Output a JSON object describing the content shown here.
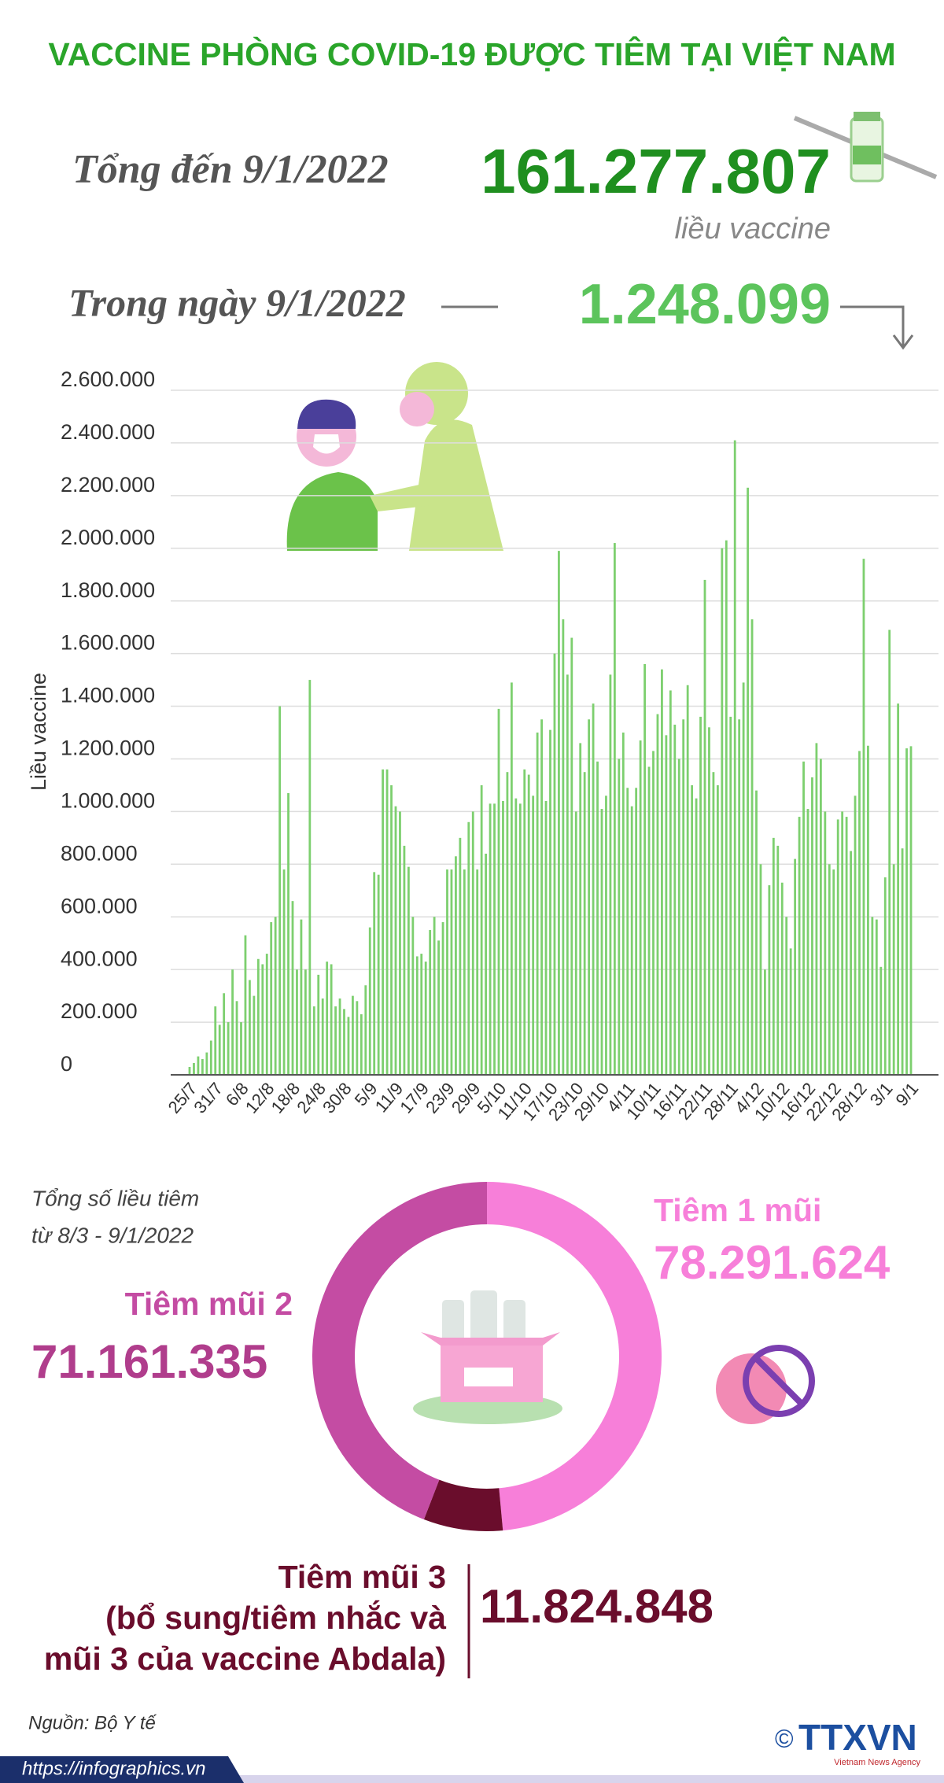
{
  "header": {
    "title": "VACCINE PHÒNG COVID-19 ĐƯỢC TIÊM TẠI VIỆT NAM",
    "total_label": "Tổng đến 9/1/2022",
    "total_value": "161.277.807",
    "total_unit": "liều vaccine",
    "day_label": "Trong ngày 9/1/2022",
    "day_value": "1.248.099"
  },
  "chart_data": [
    {
      "type": "bar",
      "y_label": "Liều vaccine",
      "color": "#7dcf6f",
      "grid": true,
      "ylim": [
        0,
        2600000
      ],
      "yticks": [
        0,
        {
          "value": 200000,
          "label": "200.000"
        },
        {
          "value": 400000,
          "label": "400.000"
        },
        {
          "value": 600000,
          "label": "600.000"
        },
        {
          "value": 800000,
          "label": "800.000"
        },
        {
          "value": 1000000,
          "label": "1.000.000"
        },
        {
          "value": 1200000,
          "label": "1.200.000"
        },
        {
          "value": 1400000,
          "label": "1.400.000"
        },
        {
          "value": 1600000,
          "label": "1.600.000"
        },
        {
          "value": 1800000,
          "label": "1.800.000"
        },
        {
          "value": 2000000,
          "label": "2.000.000"
        },
        {
          "value": 2200000,
          "label": "2.200.000"
        },
        {
          "value": 2400000,
          "label": "2.400.000"
        },
        {
          "value": 2600000,
          "label": "2.600.000"
        }
      ],
      "categories": [
        "25/7",
        null,
        null,
        null,
        null,
        null,
        "31/7",
        null,
        null,
        null,
        null,
        null,
        "6/8",
        null,
        null,
        null,
        null,
        null,
        "12/8",
        null,
        null,
        null,
        null,
        null,
        "18/8",
        null,
        null,
        null,
        null,
        null,
        "24/8",
        null,
        null,
        null,
        null,
        null,
        "30/8",
        null,
        null,
        null,
        null,
        null,
        "5/9",
        null,
        null,
        null,
        null,
        null,
        "11/9",
        null,
        null,
        null,
        null,
        null,
        "17/9",
        null,
        null,
        null,
        null,
        null,
        "23/9",
        null,
        null,
        null,
        null,
        null,
        "29/9",
        null,
        null,
        null,
        null,
        null,
        "5/10",
        null,
        null,
        null,
        null,
        null,
        "11/10",
        null,
        null,
        null,
        null,
        null,
        "17/10",
        null,
        null,
        null,
        null,
        null,
        "23/10",
        null,
        null,
        null,
        null,
        null,
        "29/10",
        null,
        null,
        null,
        null,
        null,
        "4/11",
        null,
        null,
        null,
        null,
        null,
        "10/11",
        null,
        null,
        null,
        null,
        null,
        "16/11",
        null,
        null,
        null,
        null,
        null,
        "22/11",
        null,
        null,
        null,
        null,
        null,
        "28/11",
        null,
        null,
        null,
        null,
        null,
        "4/12",
        null,
        null,
        null,
        null,
        null,
        "10/12",
        null,
        null,
        null,
        null,
        null,
        "16/12",
        null,
        null,
        null,
        null,
        null,
        "22/12",
        null,
        null,
        null,
        null,
        null,
        "28/12",
        null,
        null,
        null,
        null,
        null,
        "3/1",
        null,
        null,
        null,
        null,
        null,
        "9/1"
      ],
      "values": [
        30000,
        45000,
        70000,
        60000,
        85000,
        130000,
        260000,
        190000,
        310000,
        200000,
        400000,
        280000,
        200000,
        530000,
        360000,
        300000,
        440000,
        420000,
        460000,
        580000,
        600000,
        1400000,
        780000,
        1070000,
        660000,
        400000,
        590000,
        400000,
        1500000,
        260000,
        380000,
        290000,
        430000,
        420000,
        260000,
        290000,
        250000,
        220000,
        300000,
        280000,
        230000,
        340000,
        560000,
        770000,
        760000,
        1160000,
        1160000,
        1100000,
        1020000,
        1000000,
        870000,
        790000,
        600000,
        450000,
        460000,
        430000,
        550000,
        600000,
        510000,
        580000,
        780000,
        780000,
        830000,
        900000,
        780000,
        960000,
        1000000,
        780000,
        1100000,
        840000,
        1030000,
        1030000,
        1390000,
        1040000,
        1150000,
        1490000,
        1050000,
        1030000,
        1160000,
        1140000,
        1060000,
        1300000,
        1350000,
        1040000,
        1310000,
        1600000,
        1990000,
        1730000,
        1520000,
        1660000,
        1000000,
        1260000,
        1150000,
        1350000,
        1410000,
        1190000,
        1010000,
        1060000,
        1520000,
        2020000,
        1200000,
        1300000,
        1090000,
        1020000,
        1090000,
        1270000,
        1560000,
        1170000,
        1230000,
        1370000,
        1540000,
        1290000,
        1460000,
        1330000,
        1200000,
        1350000,
        1480000,
        1100000,
        1050000,
        1360000,
        1880000,
        1320000,
        1150000,
        1100000,
        2000000,
        2030000,
        1360000,
        2410000,
        1350000,
        1490000,
        2230000,
        1730000,
        1080000,
        800000,
        400000,
        720000,
        900000,
        870000,
        730000,
        600000,
        480000,
        820000,
        980000,
        1190000,
        1010000,
        1130000,
        1260000,
        1200000,
        1000000,
        800000,
        780000,
        970000,
        1000000,
        980000,
        850000,
        1060000,
        1230000,
        1960000,
        1250000,
        600000,
        590000,
        410000,
        750000,
        1690000,
        800000,
        1410000,
        860000,
        1240000,
        1248099
      ]
    },
    {
      "type": "pie",
      "note": [
        "Tổng số liều tiêm",
        "từ 8/3 - 9/1/2022"
      ],
      "categories": [
        "Tiêm 1 mũi",
        "Tiêm mũi 3",
        "Tiêm mũi 2"
      ],
      "category_notes": [
        [],
        [
          "(bổ sung/tiêm nhắc và",
          "mũi 3 của vaccine Abdala)"
        ],
        []
      ],
      "values": [
        78291624,
        11824848,
        71161335
      ],
      "value_labels": [
        "78.291.624",
        "11.824.848",
        "71.161.335"
      ],
      "colors": [
        "#f77fd9",
        "#6a0d2c",
        "#c44ca3"
      ]
    }
  ],
  "footer": {
    "source": "Nguồn: Bộ Y tế",
    "url": "https://infographics.vn",
    "copyright": "©",
    "logo": "TTXVN",
    "agency": "Vietnam News Agency"
  }
}
